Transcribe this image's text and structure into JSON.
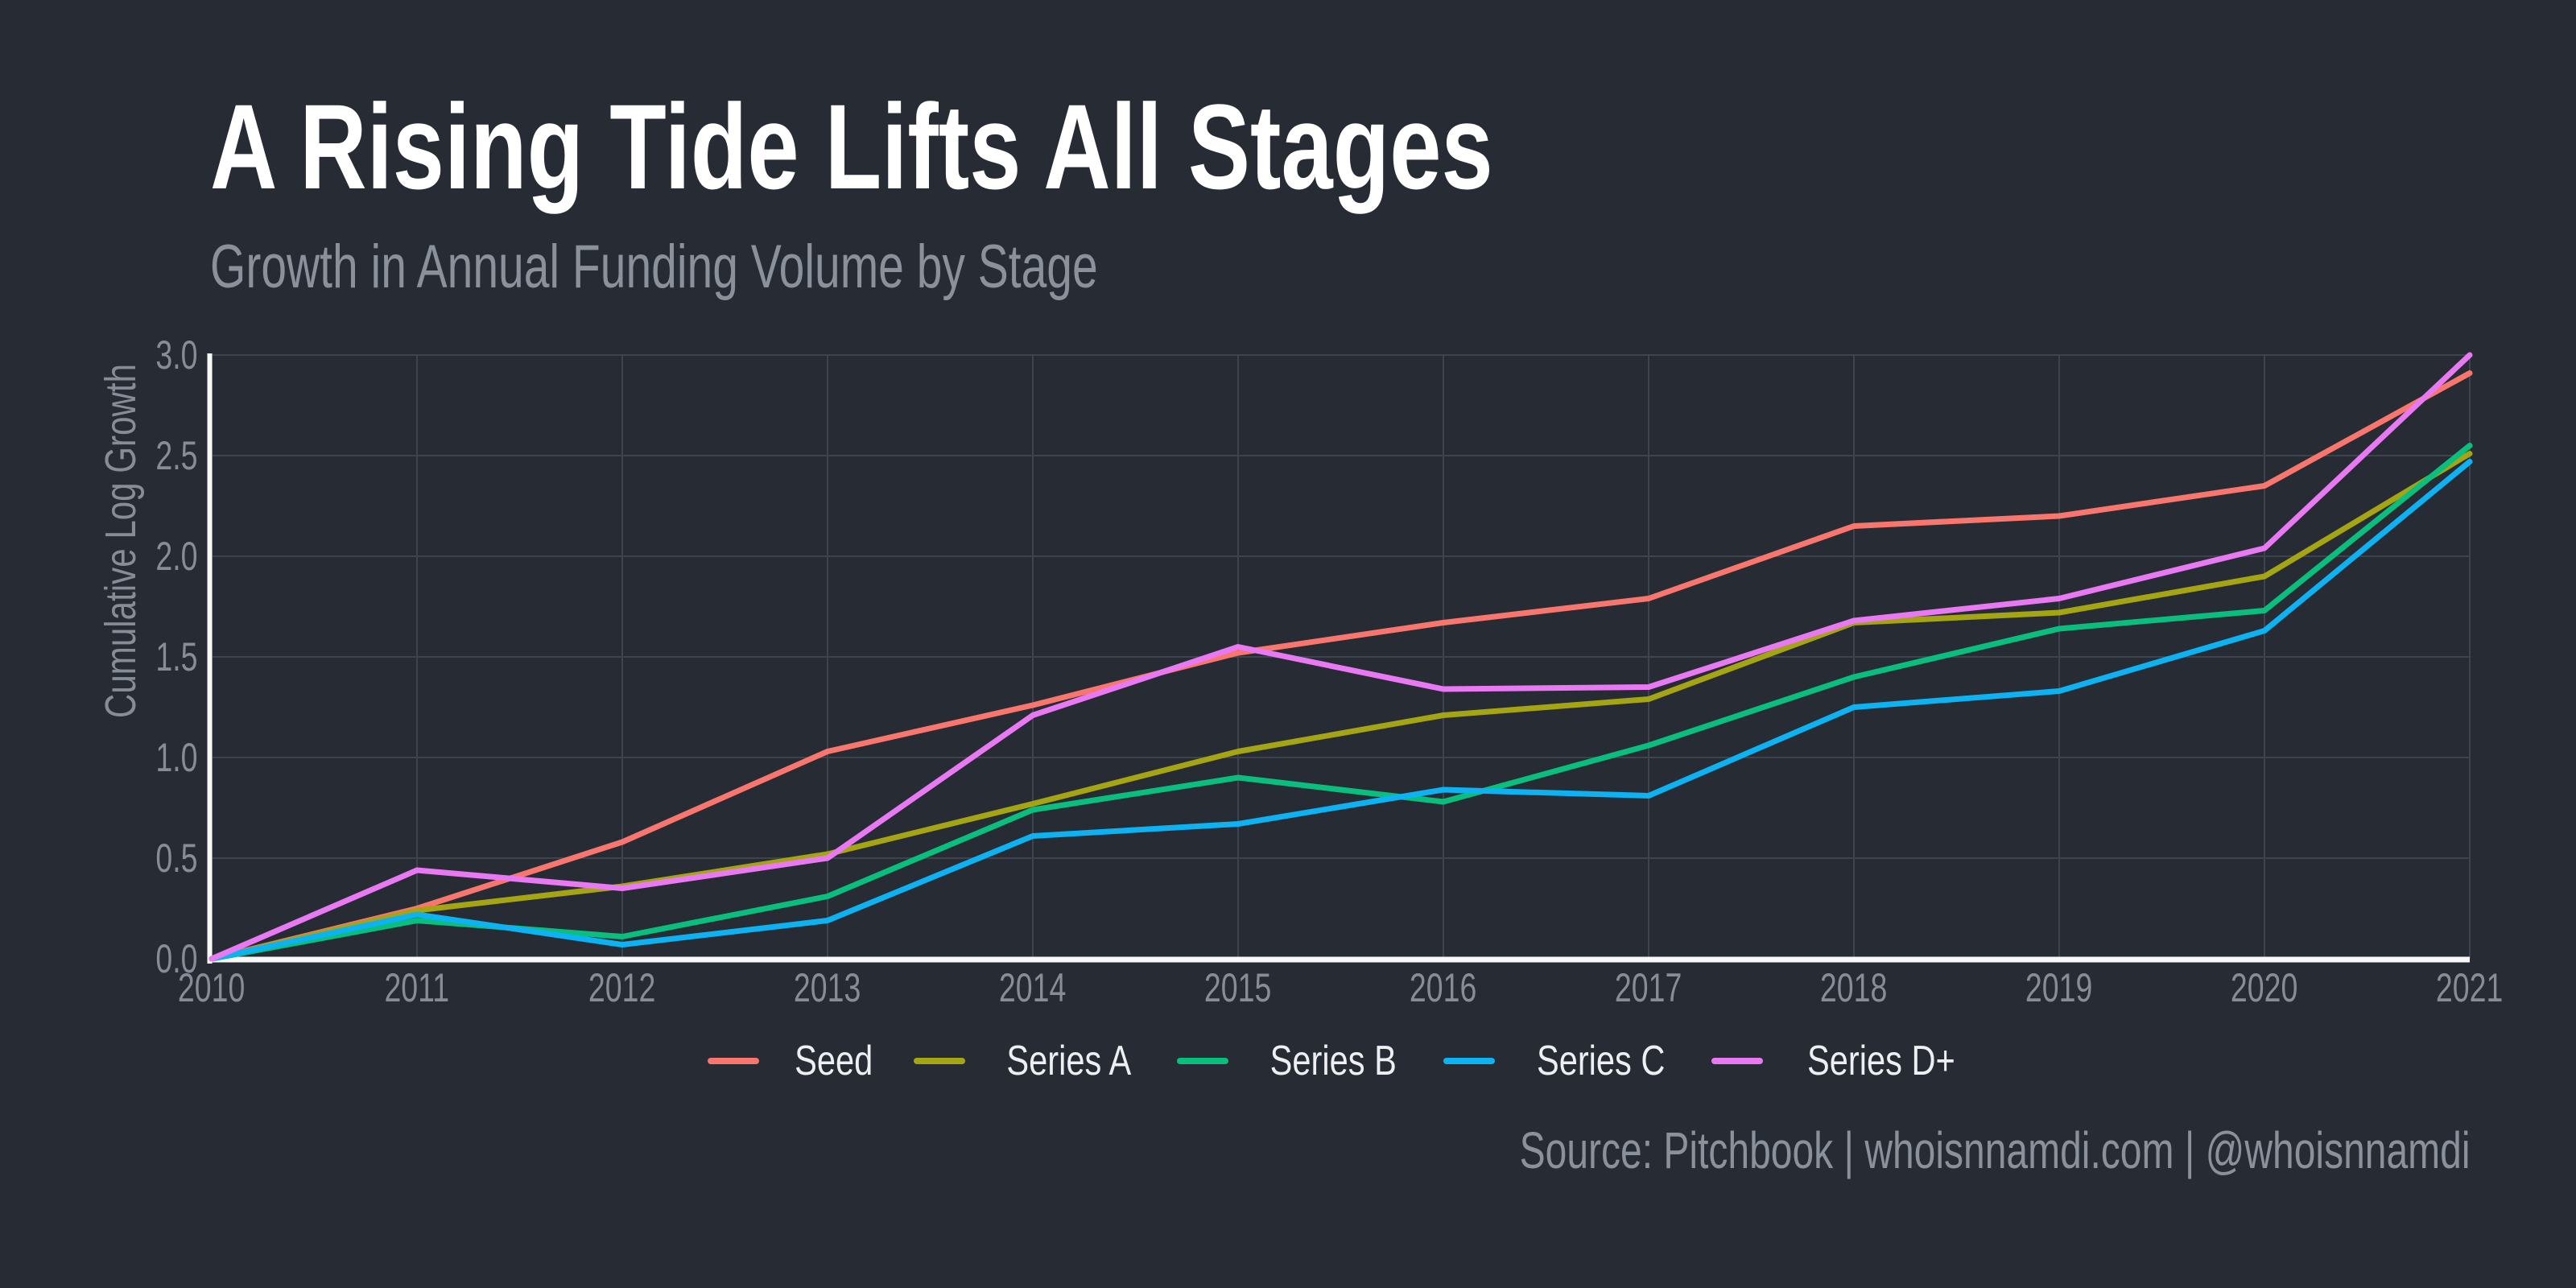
{
  "colors": {
    "background": "#262b34",
    "gridline": "#3e444e",
    "axis_line": "#f8f8f8",
    "title_text": "#ffffff",
    "subtitle_text": "#8b919b",
    "tick_text": "#878d97",
    "legend_text": "#edeff2",
    "source_text": "#8b919b"
  },
  "chart_data": {
    "type": "line",
    "title": "A Rising Tide Lifts All Stages",
    "subtitle": "Growth in Annual Funding Volume by Stage",
    "source": "Source: Pitchbook | whoisnnamdi.com | @whoisnnamdi",
    "xlabel": "",
    "ylabel": "Cumulative Log Growth",
    "x": [
      2010,
      2011,
      2012,
      2013,
      2014,
      2015,
      2016,
      2017,
      2018,
      2019,
      2020,
      2021
    ],
    "ylim": [
      0,
      3
    ],
    "ytick_step": 0.5,
    "ytick_labels": [
      "0.0",
      "0.5",
      "1.0",
      "1.5",
      "2.0",
      "2.5",
      "3.0"
    ],
    "grid": true,
    "legend_position": "bottom",
    "series": [
      {
        "name": "Seed",
        "color": "#F8766D",
        "values": [
          0,
          0.25,
          0.58,
          1.03,
          1.26,
          1.52,
          1.67,
          1.79,
          2.15,
          2.2,
          2.35,
          2.91
        ]
      },
      {
        "name": "Series A",
        "color": "#A5A412",
        "values": [
          0,
          0.24,
          0.36,
          0.52,
          0.77,
          1.03,
          1.21,
          1.29,
          1.67,
          1.72,
          1.9,
          2.51
        ]
      },
      {
        "name": "Series B",
        "color": "#0ABF7D",
        "values": [
          0,
          0.19,
          0.11,
          0.31,
          0.74,
          0.9,
          0.78,
          1.06,
          1.4,
          1.64,
          1.73,
          2.55
        ]
      },
      {
        "name": "Series C",
        "color": "#0DB2F2",
        "values": [
          0,
          0.22,
          0.07,
          0.19,
          0.61,
          0.67,
          0.84,
          0.81,
          1.25,
          1.33,
          1.63,
          2.47
        ]
      },
      {
        "name": "Series D+",
        "color": "#E879F2",
        "values": [
          0,
          0.44,
          0.35,
          0.5,
          1.21,
          1.55,
          1.34,
          1.35,
          1.68,
          1.79,
          2.04,
          3.0
        ]
      }
    ]
  }
}
